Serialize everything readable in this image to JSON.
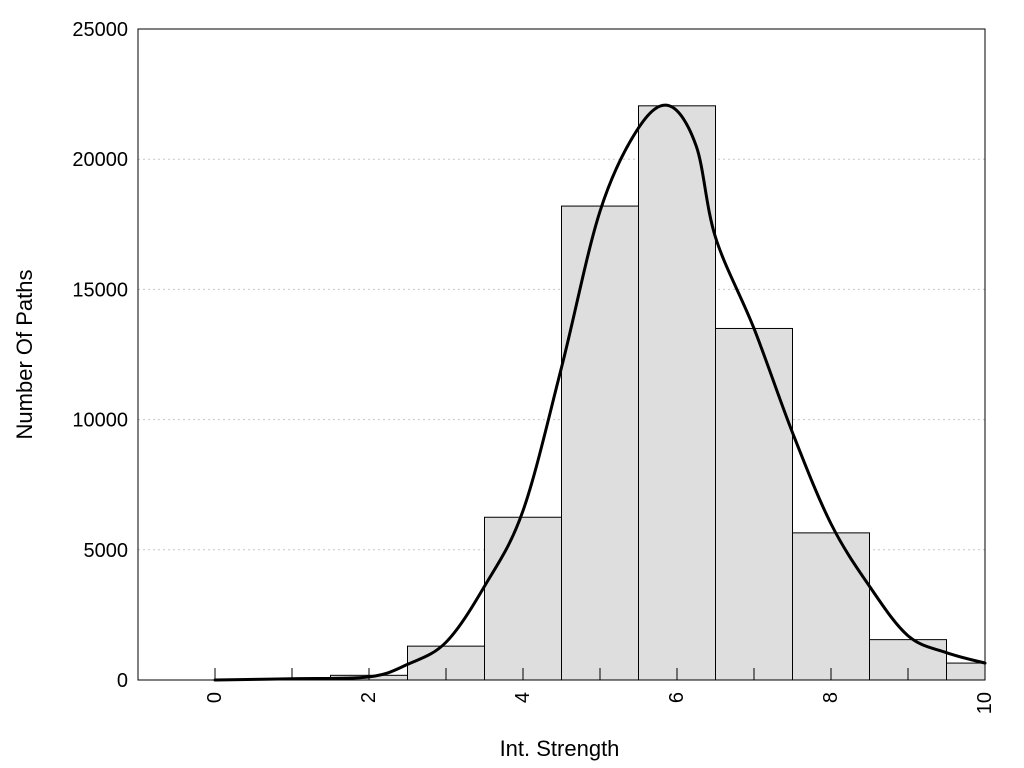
{
  "chart_data": {
    "type": "bar",
    "title": "",
    "xlabel": "Int. Strength",
    "ylabel": "Number Of Paths",
    "xlim": [
      -1,
      10
    ],
    "ylim": [
      0,
      25000
    ],
    "x_ticks": [
      0,
      2,
      4,
      6,
      8,
      10
    ],
    "y_ticks": [
      0,
      5000,
      10000,
      15000,
      20000,
      25000
    ],
    "grid": "horizontal dotted",
    "legend": "none",
    "bin_width": 1,
    "bars": [
      {
        "x": 0,
        "value": 0
      },
      {
        "x": 1,
        "value": 40
      },
      {
        "x": 2,
        "value": 180
      },
      {
        "x": 3,
        "value": 1300
      },
      {
        "x": 4,
        "value": 6250
      },
      {
        "x": 5,
        "value": 18200
      },
      {
        "x": 6,
        "value": 22050
      },
      {
        "x": 7,
        "value": 13500
      },
      {
        "x": 8,
        "value": 5650
      },
      {
        "x": 9,
        "value": 1550
      },
      {
        "x": 10,
        "value": 650
      }
    ],
    "density_curve": {
      "x": [
        0,
        1,
        2,
        2.5,
        3,
        3.5,
        4,
        4.5,
        5,
        5.5,
        5.9,
        6.25,
        6.5,
        7,
        7.5,
        8,
        8.5,
        9,
        9.5,
        10
      ],
      "y": [
        0,
        50,
        120,
        600,
        1450,
        3600,
        6500,
        12000,
        18000,
        21200,
        22050,
        20500,
        17000,
        13500,
        9500,
        6000,
        3600,
        1700,
        1050,
        650
      ]
    },
    "colors": {
      "bar_fill": "#dedede",
      "bar_stroke": "#000000",
      "curve": "#000000",
      "grid": "#c8c8c8"
    }
  }
}
